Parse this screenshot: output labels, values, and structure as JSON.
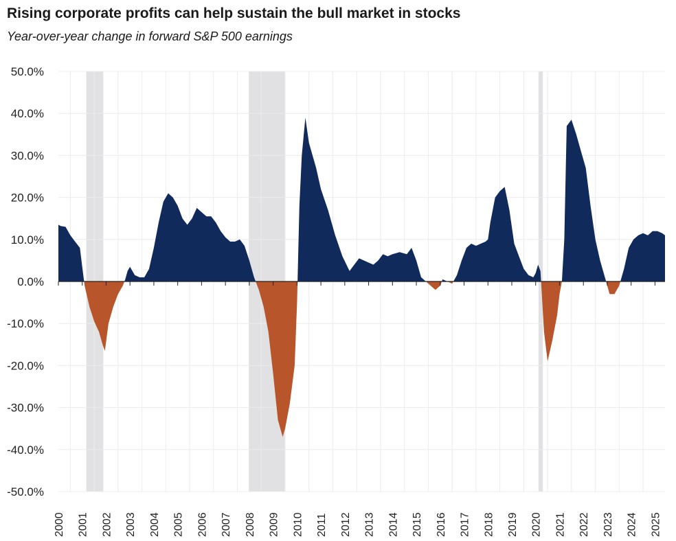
{
  "chart_data": {
    "type": "area",
    "title": "Rising corporate profits can help sustain the bull market in stocks",
    "subtitle": "Year-over-year  change in forward S&P 500 earnings",
    "xlabel": "",
    "ylabel": "",
    "ylim": [
      -50,
      50
    ],
    "xlim": [
      2000,
      2025.42
    ],
    "grid": true,
    "legend": "none",
    "colors": {
      "positive": "#102a5c",
      "negative": "#b8552a",
      "recession": "#e1e1e4",
      "grid": "#ececec",
      "axis": "#222222"
    },
    "y_ticks": [
      "50.0%",
      "40.0%",
      "30.0%",
      "20.0%",
      "10.0%",
      "0.0%",
      "-10.0%",
      "-20.0%",
      "-30.0%",
      "-40.0%",
      "-50.0%"
    ],
    "y_tick_values": [
      50,
      40,
      30,
      20,
      10,
      0,
      -10,
      -20,
      -30,
      -40,
      -50
    ],
    "x_ticks": [
      "2000",
      "2001",
      "2002",
      "2003",
      "2004",
      "2005",
      "2006",
      "2007",
      "2008",
      "2009",
      "2010",
      "2011",
      "2012",
      "2013",
      "2014",
      "2015",
      "2016",
      "2017",
      "2018",
      "2019",
      "2020",
      "2021",
      "2022",
      "2023",
      "2024",
      "2025"
    ],
    "recessions": [
      [
        2001.17,
        2001.88
      ],
      [
        2007.98,
        2009.5
      ],
      [
        2020.12,
        2020.3
      ]
    ],
    "x": [
      2000.0,
      2000.1,
      2000.3,
      2000.5,
      2000.7,
      2000.9,
      2001.0,
      2001.1,
      2001.3,
      2001.5,
      2001.7,
      2001.85,
      2001.95,
      2002.1,
      2002.3,
      2002.5,
      2002.7,
      2002.8,
      2002.9,
      2003.0,
      2003.2,
      2003.4,
      2003.6,
      2003.8,
      2004.0,
      2004.2,
      2004.4,
      2004.6,
      2004.8,
      2005.0,
      2005.2,
      2005.4,
      2005.6,
      2005.8,
      2006.0,
      2006.2,
      2006.4,
      2006.6,
      2006.8,
      2007.0,
      2007.2,
      2007.4,
      2007.6,
      2007.8,
      2008.0,
      2008.2,
      2008.4,
      2008.6,
      2008.8,
      2009.0,
      2009.2,
      2009.4,
      2009.5,
      2009.7,
      2009.9,
      2010.0,
      2010.1,
      2010.2,
      2010.35,
      2010.5,
      2010.8,
      2011.0,
      2011.3,
      2011.6,
      2011.9,
      2012.2,
      2012.4,
      2012.6,
      2012.8,
      2013.0,
      2013.2,
      2013.4,
      2013.6,
      2013.8,
      2014.0,
      2014.3,
      2014.6,
      2014.8,
      2015.0,
      2015.2,
      2015.4,
      2015.6,
      2015.8,
      2016.0,
      2016.1,
      2016.3,
      2016.5,
      2016.7,
      2016.9,
      2017.1,
      2017.3,
      2017.5,
      2017.7,
      2017.9,
      2018.0,
      2018.1,
      2018.3,
      2018.5,
      2018.7,
      2018.9,
      2019.1,
      2019.3,
      2019.5,
      2019.7,
      2019.9,
      2020.0,
      2020.1,
      2020.2,
      2020.35,
      2020.5,
      2020.7,
      2020.9,
      2021.0,
      2021.1,
      2021.2,
      2021.3,
      2021.5,
      2021.7,
      2021.9,
      2022.1,
      2022.3,
      2022.5,
      2022.7,
      2022.9,
      2023.0,
      2023.1,
      2023.3,
      2023.5,
      2023.7,
      2023.9,
      2024.1,
      2024.3,
      2024.5,
      2024.7,
      2024.9,
      2025.1,
      2025.3,
      2025.42
    ],
    "y": [
      13.5,
      13.2,
      13.0,
      11.0,
      9.5,
      8.0,
      3.5,
      -1.0,
      -6.0,
      -9.5,
      -12.0,
      -15.0,
      -16.5,
      -10.0,
      -6.0,
      -3.0,
      -1.0,
      0.5,
      2.5,
      3.5,
      1.5,
      1.0,
      1.0,
      3.0,
      8.0,
      14.0,
      19.0,
      21.0,
      20.0,
      18.0,
      15.0,
      13.5,
      15.0,
      17.5,
      16.5,
      15.5,
      15.5,
      14.0,
      12.0,
      10.5,
      9.5,
      9.5,
      10.0,
      8.5,
      5.0,
      1.0,
      -2.0,
      -6.0,
      -12.0,
      -22.0,
      -33.0,
      -37.0,
      -35.0,
      -29.0,
      -20.0,
      -5.0,
      18.0,
      30.0,
      39.0,
      33.0,
      27.0,
      22.0,
      17.0,
      11.0,
      6.0,
      2.5,
      4.0,
      5.5,
      5.0,
      4.5,
      4.0,
      5.0,
      6.5,
      6.0,
      6.5,
      7.0,
      6.5,
      8.0,
      5.0,
      1.0,
      0.0,
      -1.0,
      -2.0,
      -1.0,
      0.5,
      0.0,
      -0.5,
      1.5,
      5.0,
      8.0,
      9.0,
      8.5,
      9.0,
      9.5,
      10.0,
      14.0,
      20.0,
      21.5,
      22.5,
      17.0,
      9.0,
      6.0,
      3.0,
      1.5,
      1.0,
      2.0,
      4.0,
      2.5,
      -12.0,
      -19.0,
      -14.0,
      -8.0,
      -3.0,
      0.0,
      10.0,
      37.0,
      38.5,
      35.0,
      31.0,
      27.0,
      18.0,
      10.0,
      5.0,
      1.0,
      -1.0,
      -3.0,
      -3.0,
      -1.0,
      3.0,
      8.0,
      10.0,
      11.0,
      11.5,
      11.0,
      12.0,
      12.0,
      11.5,
      11.0
    ]
  }
}
